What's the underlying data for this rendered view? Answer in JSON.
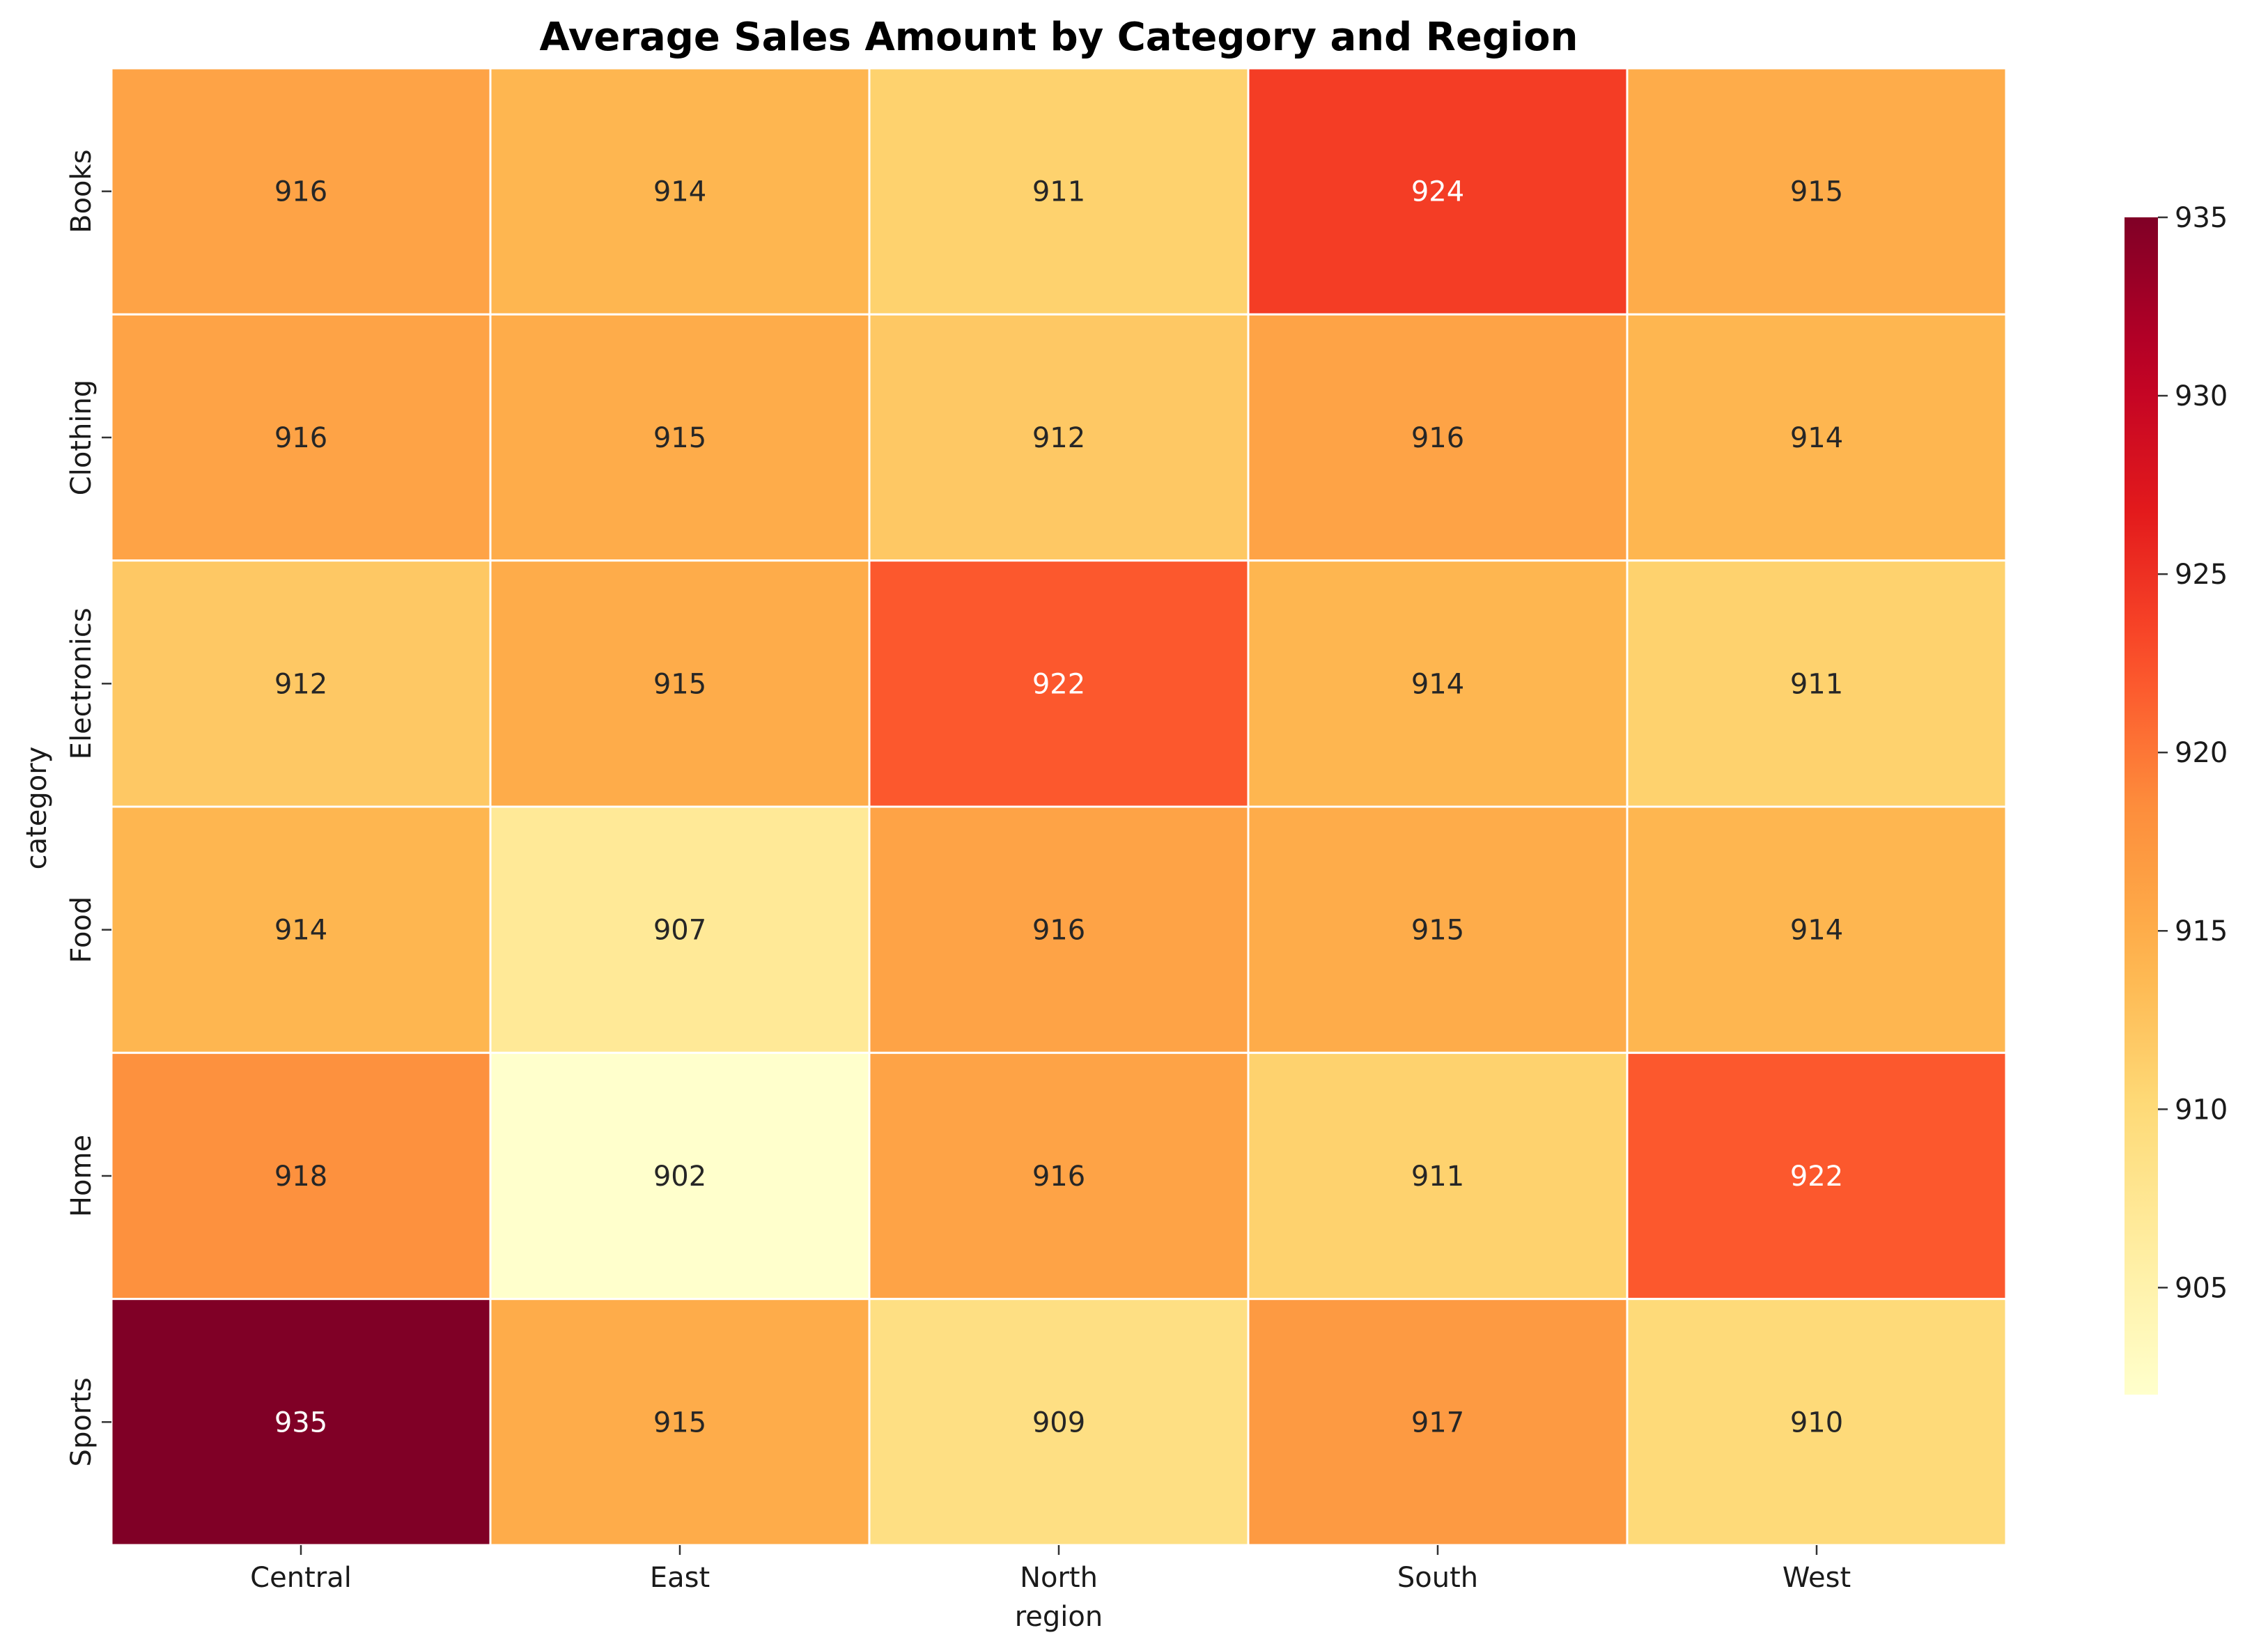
{
  "chart_data": {
    "type": "heatmap",
    "title": "Average Sales Amount by Category and Region",
    "xlabel": "region",
    "ylabel": "category",
    "x_categories": [
      "Central",
      "East",
      "North",
      "South",
      "West"
    ],
    "y_categories": [
      "Books",
      "Clothing",
      "Electronics",
      "Food",
      "Home",
      "Sports"
    ],
    "values": [
      [
        916,
        914,
        911,
        924,
        915
      ],
      [
        916,
        915,
        912,
        916,
        914
      ],
      [
        912,
        915,
        922,
        914,
        911
      ],
      [
        914,
        907,
        916,
        915,
        914
      ],
      [
        918,
        902,
        916,
        911,
        922
      ],
      [
        935,
        915,
        909,
        917,
        910
      ]
    ],
    "colormap": "YlOrRd",
    "colorbar": {
      "range": [
        902,
        935
      ],
      "ticks": [
        905,
        910,
        915,
        920,
        925,
        930,
        935
      ],
      "position": "right"
    },
    "grid": false,
    "cell_border_color": "#ffffff"
  }
}
